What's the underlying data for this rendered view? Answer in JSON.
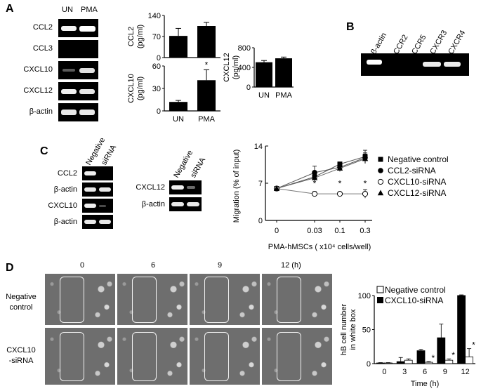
{
  "panels": {
    "A": "A",
    "B": "B",
    "C": "C",
    "D": "D"
  },
  "panelA": {
    "lanes": [
      "UN",
      "PMA"
    ],
    "genes": [
      "CCL2",
      "CCL3",
      "CXCL10",
      "CXCL12",
      "β-actin"
    ]
  },
  "panelB": {
    "lanes": [
      "β-actin",
      "CCR2",
      "CCR5",
      "CXCR3",
      "CXCR4"
    ]
  },
  "panelC": {
    "gel1": {
      "lanes": [
        "Negative",
        "siRNA"
      ],
      "rows": [
        "CCL2",
        "β-actin",
        "CXCL10",
        "β-actin"
      ]
    },
    "gel2": {
      "lanes": [
        "Negative",
        "siRNA"
      ],
      "rows": [
        "CXCL12",
        "β-actin"
      ]
    }
  },
  "panelD": {
    "time_labels": [
      "0",
      "6",
      "9",
      "12 (h)"
    ],
    "row_labels": [
      "Negative\ncontrol",
      "CXCL10\n-siRNA"
    ]
  },
  "chart_data": [
    {
      "id": "A-CCL2",
      "type": "bar",
      "categories": [
        "UN",
        "PMA"
      ],
      "values": [
        72,
        105
      ],
      "errors": [
        25,
        12
      ],
      "ylabel": "CCL2\n(pg/ml)",
      "ylim": [
        0,
        140
      ],
      "yticks": [
        "0",
        "70",
        "140"
      ],
      "xticks_shown": false,
      "colors": {
        "bar": "#000000"
      }
    },
    {
      "id": "A-CXCL10",
      "type": "bar",
      "categories": [
        "UN",
        "PMA"
      ],
      "values": [
        12,
        41
      ],
      "errors": [
        2,
        14
      ],
      "ylabel": "CXCL10\n(pg/ml)",
      "ylim": [
        0,
        60
      ],
      "yticks": [
        "0",
        "30",
        "60"
      ],
      "annotations": [
        {
          "category": "PMA",
          "text": "*"
        }
      ],
      "colors": {
        "bar": "#000000"
      }
    },
    {
      "id": "A-CXCL12",
      "type": "bar",
      "categories": [
        "UN",
        "PMA"
      ],
      "values": [
        505,
        585
      ],
      "errors": [
        35,
        25
      ],
      "ylabel": "CXCL12\n(pg/ml)",
      "ylim": [
        0,
        800
      ],
      "yticks": [
        "0",
        "400",
        "800"
      ],
      "colors": {
        "bar": "#000000"
      }
    },
    {
      "id": "C-migration",
      "type": "line",
      "categories": [
        "0",
        "0.03",
        "0.1",
        "0.3"
      ],
      "xlabel": "PMA-hMSCs ( x10⁴ cells/well)",
      "ylabel": "Migration  (% of input)",
      "ylim": [
        0,
        14
      ],
      "yticks": [
        "0",
        "7",
        "14"
      ],
      "series": [
        {
          "name": "Negative control",
          "marker": "square",
          "values": [
            6,
            8.2,
            10.6,
            12
          ],
          "errors": [
            0,
            0.6,
            0.4,
            1.2
          ]
        },
        {
          "name": "CCL2-siRNA",
          "marker": "circle",
          "values": [
            6,
            9,
            10,
            11.8
          ],
          "errors": [
            0,
            1.2,
            0.5,
            0.9
          ]
        },
        {
          "name": "CXCL10-siRNA",
          "marker": "open-circle",
          "values": [
            6,
            5,
            5,
            5
          ],
          "errors": [
            0,
            0.4,
            0.3,
            0.8
          ]
        },
        {
          "name": "CXCL12-siRNA",
          "marker": "triangle",
          "values": [
            6,
            8,
            9.8,
            11.6
          ],
          "errors": [
            0,
            0.7,
            0.6,
            0.9
          ]
        }
      ],
      "annotations": [
        {
          "category": "0.03",
          "text": "*"
        },
        {
          "category": "0.1",
          "text": "*"
        },
        {
          "category": "0.3",
          "text": "*"
        }
      ]
    },
    {
      "id": "D-cells",
      "type": "bar",
      "categories": [
        "0",
        "3",
        "6",
        "9",
        "12"
      ],
      "xlabel": "Time (h)",
      "ylabel": "hB cell number\nin white box",
      "ylim": [
        0,
        100
      ],
      "yticks": [
        "0",
        "50",
        "100"
      ],
      "series": [
        {
          "name": "Negative control",
          "fill": "open",
          "values": [
            1,
            5,
            2,
            5,
            10
          ],
          "errors": [
            0.5,
            2,
            1,
            2,
            12
          ]
        },
        {
          "name": "CXCL10-siRNA",
          "fill": "solid",
          "values": [
            1,
            3,
            19,
            38,
            100
          ],
          "errors": [
            0.5,
            6,
            2,
            20,
            1
          ]
        }
      ],
      "annotations": [
        {
          "category": "6",
          "text": "*"
        },
        {
          "category": "9",
          "text": "*"
        },
        {
          "category": "12",
          "text": "*"
        }
      ]
    }
  ]
}
